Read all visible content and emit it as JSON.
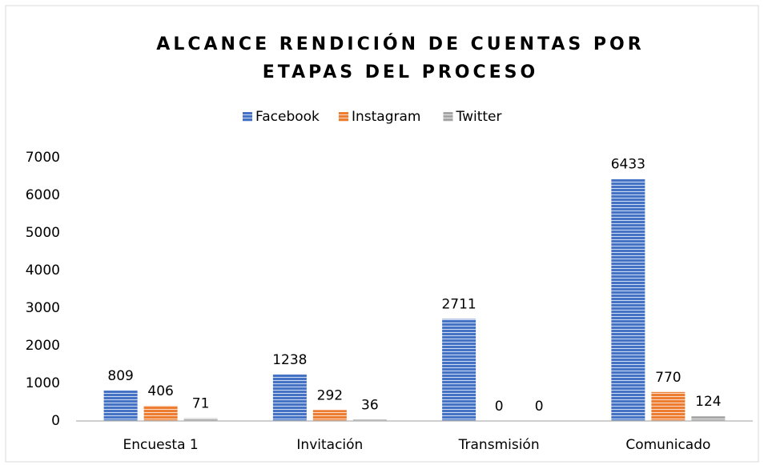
{
  "chart_data": {
    "type": "bar",
    "title": "ALCANCE RENDICIÓN DE CUENTAS POR ETAPAS DEL PROCESO",
    "categories": [
      "Encuesta 1",
      "Invitación",
      "Transmisión",
      "Comunicado"
    ],
    "series": [
      {
        "name": "Facebook",
        "color": "#4472c4",
        "values": [
          809,
          1238,
          2711,
          6433
        ]
      },
      {
        "name": "Instagram",
        "color": "#ed7d31",
        "values": [
          406,
          292,
          0,
          770
        ]
      },
      {
        "name": "Twitter",
        "color": "#a5a5a5",
        "values": [
          71,
          36,
          0,
          124
        ]
      }
    ],
    "ylim": [
      0,
      7000
    ],
    "yticks": [
      0,
      1000,
      2000,
      3000,
      4000,
      5000,
      6000,
      7000
    ],
    "legend": "top",
    "grid": false
  }
}
